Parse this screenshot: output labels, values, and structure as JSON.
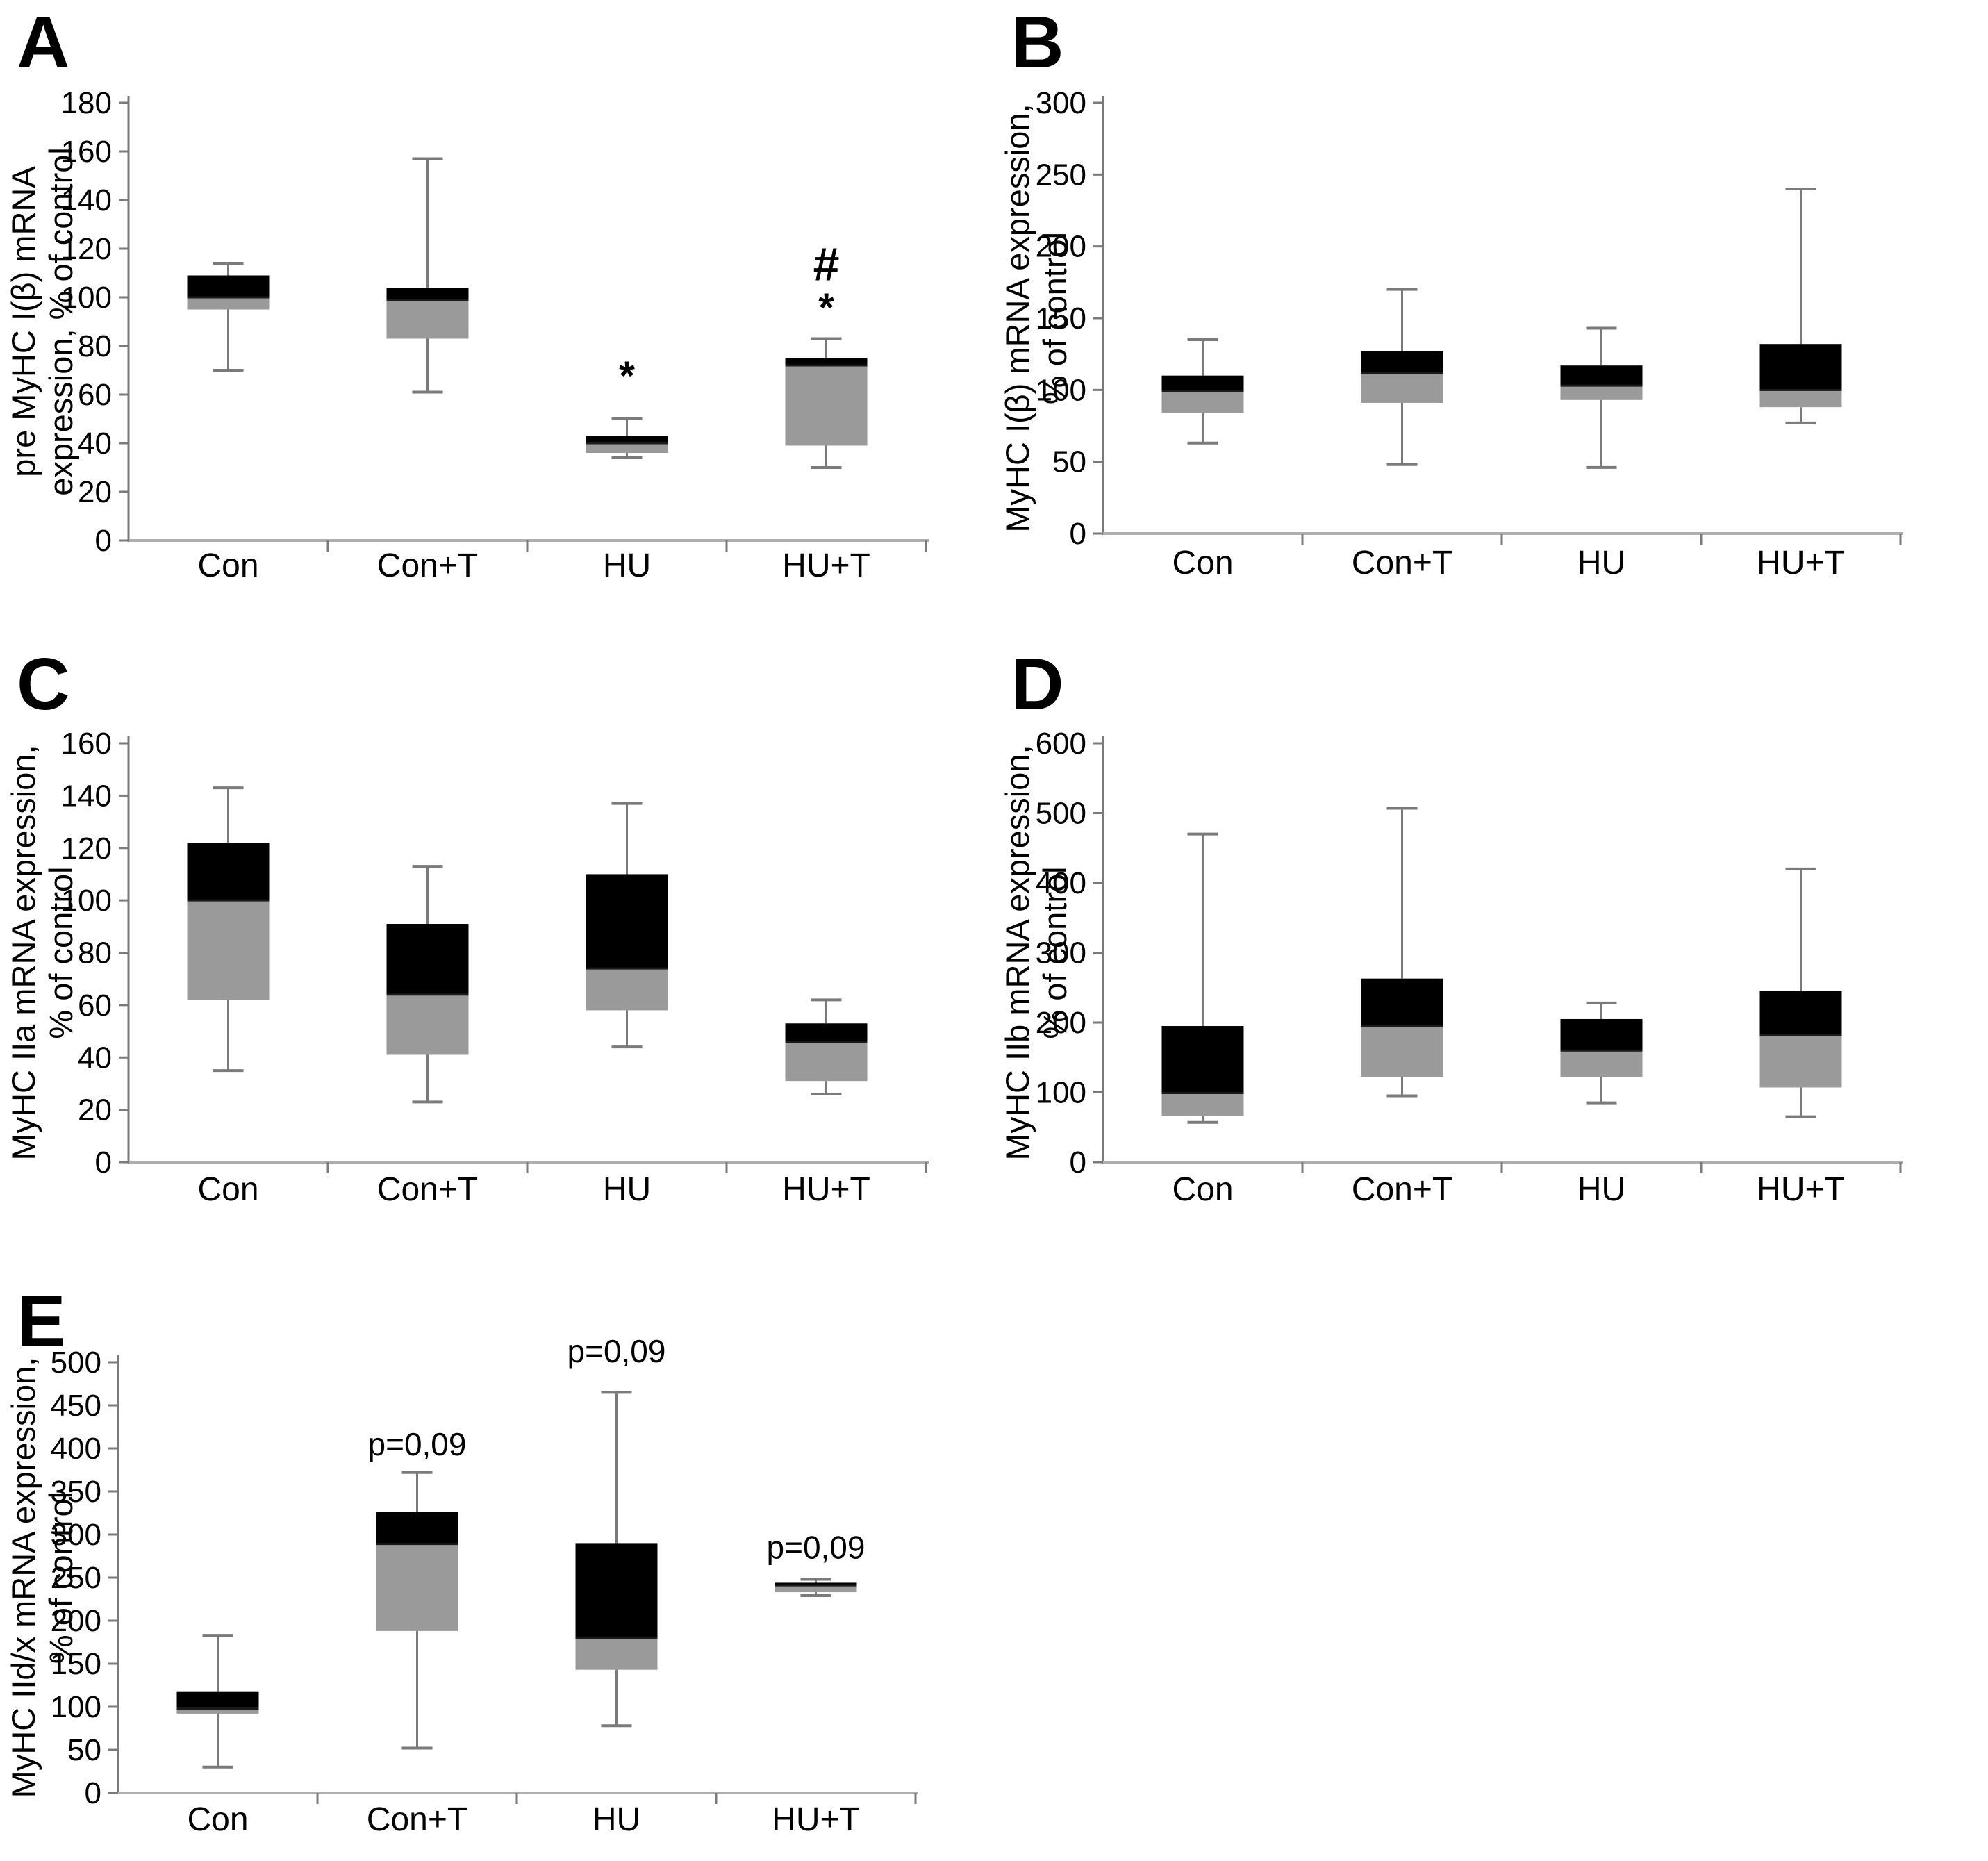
{
  "figure": {
    "kind": "five-panel boxplot figure",
    "background": "#ffffff",
    "panel_letters": [
      "A",
      "B",
      "C",
      "D",
      "E"
    ]
  },
  "colors": {
    "box_upper_fill": "#000000",
    "box_lower_fill": "#9a9a9a",
    "median_line": "#1a1a1a",
    "whisker": "#7a7a7a",
    "y_axis": "#7a7a7a",
    "baseline": "#aeaeae",
    "text": "#000000"
  },
  "chart_data": [
    {
      "panel": "A",
      "type": "boxplot",
      "title": "pre MyHC I(β) mRNA expression, % of control",
      "title_lines": [
        "pre MyHC I(β) mRNA",
        "expression, % of control"
      ],
      "ylabel": "pre MyHC I(β) mRNA expression, % of control",
      "ylim": [
        0,
        180
      ],
      "ytick_step": 20,
      "yticks": [
        0,
        20,
        40,
        60,
        80,
        100,
        120,
        140,
        160,
        180
      ],
      "grid": false,
      "categories": [
        "Con",
        "Con+T",
        "HU",
        "HU+T"
      ],
      "series": [
        {
          "category": "Con",
          "low": 70,
          "q1": 95,
          "median": 100,
          "q3": 109,
          "high": 114,
          "annotations": []
        },
        {
          "category": "Con+T",
          "low": 61,
          "q1": 83,
          "median": 99,
          "q3": 104,
          "high": 157,
          "annotations": []
        },
        {
          "category": "HU",
          "low": 34,
          "q1": 36,
          "median": 40,
          "q3": 43,
          "high": 50,
          "annotations": [
            {
              "text": "*",
              "y": 62,
              "size": 58
            }
          ]
        },
        {
          "category": "HU+T",
          "low": 30,
          "q1": 39,
          "median": 72,
          "q3": 75,
          "high": 83,
          "annotations": [
            {
              "text": "#",
              "y": 107,
              "size": 68
            },
            {
              "text": "*",
              "y": 90,
              "size": 58
            }
          ]
        }
      ]
    },
    {
      "panel": "B",
      "type": "boxplot",
      "title": "MyHC I(β) mRNA expression, % of control",
      "title_lines": [
        "MyHC I(β) mRNA expression,",
        "% of control"
      ],
      "ylabel": "MyHC I(β) mRNA expression, % of control",
      "ylim": [
        0,
        300
      ],
      "ytick_step": 50,
      "yticks": [
        0,
        50,
        100,
        150,
        200,
        250,
        300
      ],
      "grid": false,
      "categories": [
        "Con",
        "Con+T",
        "HU",
        "HU+T"
      ],
      "series": [
        {
          "category": "Con",
          "low": 63,
          "q1": 84,
          "median": 99,
          "q3": 110,
          "high": 135,
          "annotations": []
        },
        {
          "category": "Con+T",
          "low": 48,
          "q1": 91,
          "median": 112,
          "q3": 127,
          "high": 170,
          "annotations": []
        },
        {
          "category": "HU",
          "low": 46,
          "q1": 93,
          "median": 103,
          "q3": 117,
          "high": 143,
          "annotations": []
        },
        {
          "category": "HU+T",
          "low": 77,
          "q1": 88,
          "median": 100,
          "q3": 132,
          "high": 240,
          "annotations": []
        }
      ]
    },
    {
      "panel": "C",
      "type": "boxplot",
      "title": "MyHC IIa mRNA expression, % of control",
      "title_lines": [
        "MyHC IIa mRNA expression,",
        "% of control"
      ],
      "ylabel": "MyHC IIa mRNA expression, % of control",
      "ylim": [
        0,
        160
      ],
      "ytick_step": 20,
      "yticks": [
        0,
        20,
        40,
        60,
        80,
        100,
        120,
        140,
        160
      ],
      "grid": false,
      "categories": [
        "Con",
        "Con+T",
        "HU",
        "HU+T"
      ],
      "series": [
        {
          "category": "Con",
          "low": 35,
          "q1": 62,
          "median": 100,
          "q3": 122,
          "high": 143,
          "annotations": []
        },
        {
          "category": "Con+T",
          "low": 23,
          "q1": 41,
          "median": 64,
          "q3": 91,
          "high": 113,
          "annotations": []
        },
        {
          "category": "HU",
          "low": 44,
          "q1": 58,
          "median": 74,
          "q3": 110,
          "high": 137,
          "annotations": []
        },
        {
          "category": "HU+T",
          "low": 26,
          "q1": 31,
          "median": 46,
          "q3": 53,
          "high": 62,
          "annotations": []
        }
      ]
    },
    {
      "panel": "D",
      "type": "boxplot",
      "title": "MyHC IIb mRNA expression, % of control",
      "title_lines": [
        "MyHC IIb mRNA expression,",
        "% of control"
      ],
      "ylabel": "MyHC IIb mRNA expression, % of control",
      "ylim": [
        0,
        600
      ],
      "ytick_step": 100,
      "yticks": [
        0,
        100,
        200,
        300,
        400,
        500,
        600
      ],
      "grid": false,
      "categories": [
        "Con",
        "Con+T",
        "HU",
        "HU+T"
      ],
      "series": [
        {
          "category": "Con",
          "low": 57,
          "q1": 66,
          "median": 99,
          "q3": 195,
          "high": 470,
          "annotations": []
        },
        {
          "category": "Con+T",
          "low": 95,
          "q1": 122,
          "median": 195,
          "q3": 263,
          "high": 507,
          "annotations": []
        },
        {
          "category": "HU",
          "low": 85,
          "q1": 122,
          "median": 160,
          "q3": 205,
          "high": 228,
          "annotations": []
        },
        {
          "category": "HU+T",
          "low": 65,
          "q1": 107,
          "median": 182,
          "q3": 245,
          "high": 420,
          "annotations": []
        }
      ]
    },
    {
      "panel": "E",
      "type": "boxplot",
      "title": "MyHC IId/x mRNA expression, % of control",
      "title_lines": [
        "MyHC IId/x  mRNA expression,",
        "% of control"
      ],
      "ylabel": "MyHC IId/x mRNA expression, % of control",
      "ylim": [
        0,
        500
      ],
      "ytick_step": 50,
      "yticks": [
        0,
        50,
        100,
        150,
        200,
        250,
        300,
        350,
        400,
        450,
        500
      ],
      "grid": false,
      "categories": [
        "Con",
        "Con+T",
        "HU",
        "HU+T"
      ],
      "series": [
        {
          "category": "Con",
          "low": 30,
          "q1": 92,
          "median": 98,
          "q3": 118,
          "high": 183,
          "annotations": []
        },
        {
          "category": "Con+T",
          "low": 52,
          "q1": 188,
          "median": 289,
          "q3": 326,
          "high": 372,
          "annotations": [
            {
              "text": "p=0,09",
              "y": 392,
              "size": 46
            }
          ]
        },
        {
          "category": "HU",
          "low": 78,
          "q1": 143,
          "median": 180,
          "q3": 290,
          "high": 465,
          "annotations": [
            {
              "text": "p=0,09",
              "y": 500,
              "size": 46
            }
          ]
        },
        {
          "category": "HU+T",
          "low": 229,
          "q1": 233,
          "median": 241,
          "q3": 244,
          "high": 248,
          "annotations": [
            {
              "text": "p=0,09",
              "y": 272,
              "size": 46
            }
          ]
        }
      ]
    }
  ]
}
